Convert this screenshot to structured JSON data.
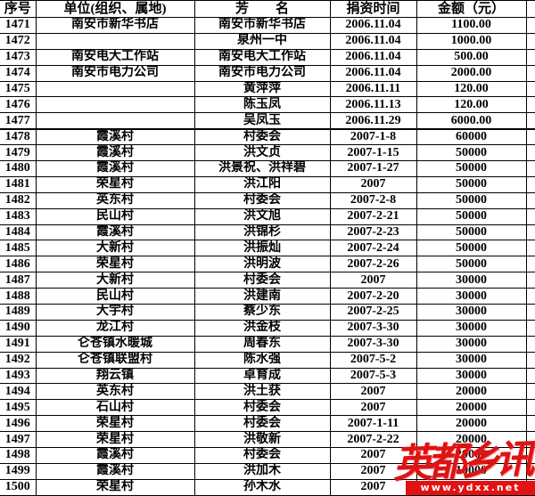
{
  "table": {
    "headers": {
      "no": "序号",
      "unit": "单位(组织、属地)",
      "name": "芳　　名",
      "date": "捐资时间",
      "amount": "金额（元）"
    },
    "rows": [
      {
        "no": "1471",
        "unit": "南安市新华书店",
        "name": "南安市新华书店",
        "date": "2006.11.04",
        "amount": "1100.00"
      },
      {
        "no": "1472",
        "unit": "",
        "name": "泉州一中",
        "date": "2006.11.04",
        "amount": "1000.00"
      },
      {
        "no": "1473",
        "unit": "南安电大工作站",
        "name": "南安电大工作站",
        "date": "2006.11.04",
        "amount": "500.00"
      },
      {
        "no": "1474",
        "unit": "南安市电力公司",
        "name": "南安市电力公司",
        "date": "2006.11.04",
        "amount": "2000.00"
      },
      {
        "no": "1475",
        "unit": "",
        "name": "黄萍萍",
        "date": "2006.11.11",
        "amount": "120.00"
      },
      {
        "no": "1476",
        "unit": "",
        "name": "陈玉凤",
        "date": "2006.11.13",
        "amount": "120.00"
      },
      {
        "no": "1477",
        "unit": "",
        "name": "吴凤玉",
        "date": "2006.11.29",
        "amount": "6000.00"
      },
      {
        "no": "1478",
        "unit": "霞溪村",
        "name": "村委会",
        "date": "2007-1-8",
        "amount": "60000",
        "thick_top": true
      },
      {
        "no": "1479",
        "unit": "霞溪村",
        "name": "洪文贞",
        "date": "2007-1-15",
        "amount": "50000"
      },
      {
        "no": "1480",
        "unit": "霞溪村",
        "name": "洪景祝、洪祥碧",
        "date": "2007-1-27",
        "amount": "50000"
      },
      {
        "no": "1481",
        "unit": "荣星村",
        "name": "洪江阳",
        "date": "2007",
        "amount": "50000"
      },
      {
        "no": "1482",
        "unit": "英东村",
        "name": "村委会",
        "date": "2007-2-8",
        "amount": "50000"
      },
      {
        "no": "1483",
        "unit": "民山村",
        "name": "洪文旭",
        "date": "2007-2-21",
        "amount": "50000"
      },
      {
        "no": "1484",
        "unit": "霞溪村",
        "name": "洪锦杉",
        "date": "2007-2-23",
        "amount": "50000"
      },
      {
        "no": "1485",
        "unit": "大新村",
        "name": "洪振灿",
        "date": "2007-2-24",
        "amount": "50000"
      },
      {
        "no": "1486",
        "unit": "荣星村",
        "name": "洪明波",
        "date": "2007-2-26",
        "amount": "50000"
      },
      {
        "no": "1487",
        "unit": "大新村",
        "name": "村委会",
        "date": "2007",
        "amount": "30000"
      },
      {
        "no": "1488",
        "unit": "民山村",
        "name": "洪建南",
        "date": "2007-2-20",
        "amount": "30000"
      },
      {
        "no": "1489",
        "unit": "大宇村",
        "name": "蔡少东",
        "date": "2007-2-25",
        "amount": "30000"
      },
      {
        "no": "1490",
        "unit": "龙江村",
        "name": "洪金枝",
        "date": "2007-3-30",
        "amount": "30000"
      },
      {
        "no": "1491",
        "unit": "仑苍镇水暖城",
        "name": "周春东",
        "date": "2007-3-30",
        "amount": "30000"
      },
      {
        "no": "1492",
        "unit": "仑苍镇联盟村",
        "name": "陈水强",
        "date": "2007-5-2",
        "amount": "30000"
      },
      {
        "no": "1493",
        "unit": "翔云镇",
        "name": "卓育成",
        "date": "2007-5-3",
        "amount": "30000"
      },
      {
        "no": "1494",
        "unit": "英东村",
        "name": "洪土获",
        "date": "2007",
        "amount": "20000"
      },
      {
        "no": "1495",
        "unit": "石山村",
        "name": "村委会",
        "date": "2007",
        "amount": "20000"
      },
      {
        "no": "1496",
        "unit": "荣星村",
        "name": "村委会",
        "date": "2007-1-11",
        "amount": "20000"
      },
      {
        "no": "1497",
        "unit": "荣星村",
        "name": "洪敬新",
        "date": "2007-2-22",
        "amount": "20000"
      },
      {
        "no": "1498",
        "unit": "霞溪村",
        "name": "村委会",
        "date": "2007",
        "amount": "20000"
      },
      {
        "no": "1499",
        "unit": "霞溪村",
        "name": "洪加木",
        "date": "2007",
        "amount": "10000"
      },
      {
        "no": "1500",
        "unit": "荣星村",
        "name": "孙木水",
        "date": "2007",
        "amount": ""
      }
    ]
  },
  "watermark": {
    "logo_text": "英都乡讯",
    "url_text": "www.ydxx.net",
    "red": "#e31212"
  }
}
